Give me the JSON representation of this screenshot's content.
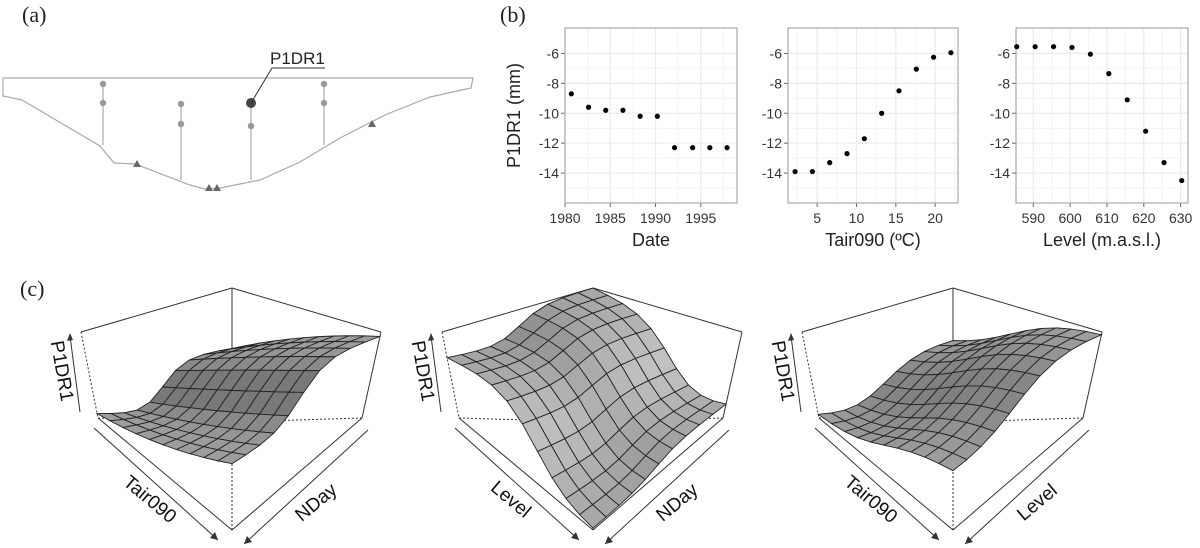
{
  "panel_labels": {
    "a": "(a)",
    "b": "(b)",
    "c": "(c)"
  },
  "diagram": {
    "sensor_label": "P1DR1",
    "line_color": "#aaaaaa",
    "highlight_color": "#444444"
  },
  "chart_data": [
    {
      "type": "scatter",
      "xlabel": "Date",
      "ylabel": "P1DR1 (mm)",
      "xticks": [
        1980,
        1985,
        1990,
        1995
      ],
      "yticks": [
        -6,
        -8,
        -10,
        -12,
        -14
      ],
      "xlim": [
        1980,
        1999
      ],
      "ylim": [
        -16,
        -4.3
      ],
      "grid": true,
      "x": [
        1980.7,
        1982.6,
        1984.5,
        1986.4,
        1988.3,
        1990.2,
        1992.1,
        1994.1,
        1996.0,
        1997.9
      ],
      "y": [
        -8.7,
        -9.6,
        -9.8,
        -9.8,
        -10.2,
        -10.2,
        -12.3,
        -12.3,
        -12.3,
        -12.3
      ]
    },
    {
      "type": "scatter",
      "xlabel": "Tair090 (ºC)",
      "ylabel": "",
      "xticks": [
        5,
        10,
        15,
        20
      ],
      "yticks": [
        -6,
        -8,
        -10,
        -12,
        -14
      ],
      "xlim": [
        1.3,
        22.9
      ],
      "ylim": [
        -16,
        -4.3
      ],
      "grid": true,
      "x": [
        2.2,
        4.4,
        6.6,
        8.8,
        11.0,
        13.2,
        15.4,
        17.6,
        19.8,
        22.0
      ],
      "y": [
        -13.9,
        -13.9,
        -13.3,
        -12.7,
        -11.7,
        -10.0,
        -8.5,
        -7.05,
        -6.25,
        -5.95
      ]
    },
    {
      "type": "scatter",
      "xlabel": "Level (m.a.s.l.)",
      "ylabel": "",
      "xticks": [
        590,
        600,
        610,
        620,
        630
      ],
      "yticks": [
        -6,
        -8,
        -10,
        -12,
        -14
      ],
      "xlim": [
        585.3,
        632
      ],
      "ylim": [
        -16,
        -4.3
      ],
      "grid": true,
      "x": [
        585.5,
        590.5,
        595.5,
        600.5,
        605.5,
        610.5,
        615.5,
        620.5,
        625.5,
        630.3
      ],
      "y": [
        -5.55,
        -5.55,
        -5.55,
        -5.6,
        -6.05,
        -7.35,
        -9.1,
        -11.2,
        -13.3,
        -14.5
      ]
    },
    {
      "type": "surface",
      "zlabel": "P1DR1",
      "xlabel": "Tair090",
      "ylabel": "NDay"
    },
    {
      "type": "surface",
      "zlabel": "P1DR1",
      "xlabel": "Level",
      "ylabel": "NDay"
    },
    {
      "type": "surface",
      "zlabel": "P1DR1",
      "xlabel": "Tair090",
      "ylabel": "Level"
    }
  ],
  "colors": {
    "surface": "#9a9a9a",
    "grid": "#ebebeb",
    "point": "#000000"
  }
}
